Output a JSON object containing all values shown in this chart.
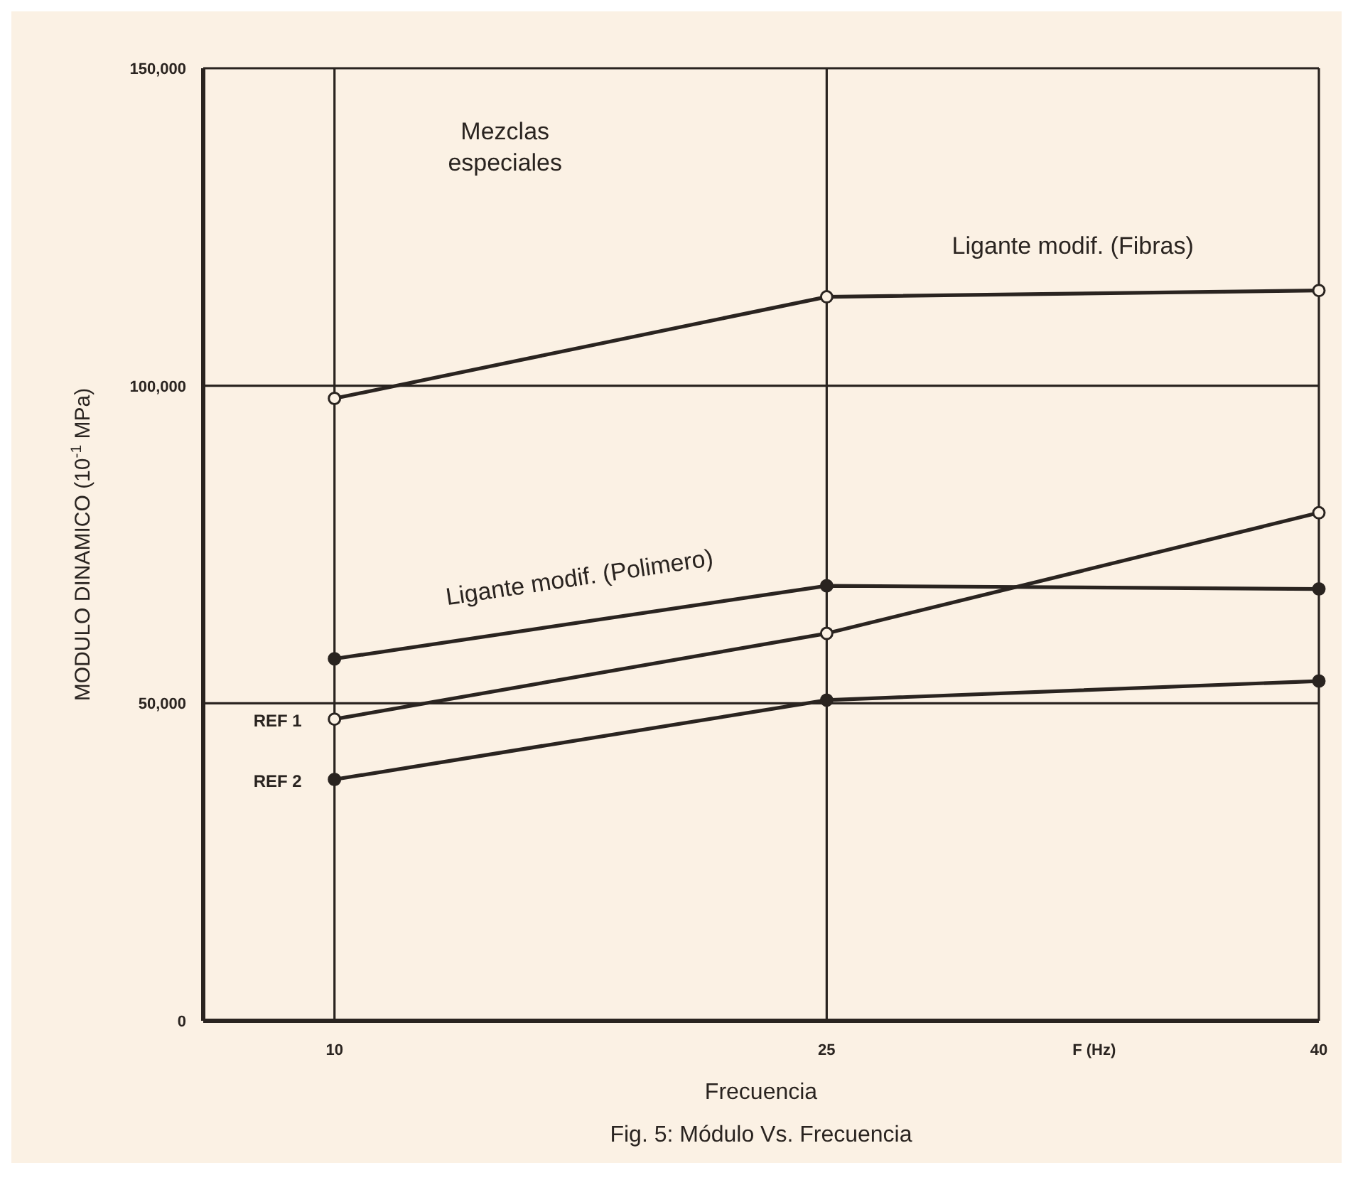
{
  "chart_data": {
    "type": "line",
    "title": "Fig. 5: Módulo Vs. Frecuencia",
    "xlabel": "Frecuencia",
    "ylabel": "MODULO DINAMICO (10$^{-1}$ MPa)",
    "x": [
      10,
      25,
      40
    ],
    "series": [
      {
        "name": "Ligante modif. (Fibras)",
        "color": "#2a2420",
        "values": [
          98000,
          114000,
          115000
        ]
      },
      {
        "name": "Ligante modif. (Polimero)",
        "color": "#2a2420",
        "values": [
          57000,
          68500,
          68000
        ]
      },
      {
        "name": "REF 1",
        "color": "#2a2420",
        "values": [
          47500,
          61000,
          80000
        ]
      },
      {
        "name": "REF 2",
        "color": "#2a2420",
        "values": [
          38000,
          50500,
          53500
        ]
      }
    ],
    "xlim": [
      6,
      40
    ],
    "xticks": [
      10,
      25,
      40
    ],
    "ylim": [
      0,
      150000
    ],
    "yticks": [
      {
        "value": 0,
        "label": "0"
      },
      {
        "value": 50000,
        "label": "50,000"
      },
      {
        "value": 100000,
        "label": "100,000"
      },
      {
        "value": 150000,
        "label": "150,000"
      }
    ],
    "grid": true,
    "marker": "circle",
    "line_style": "solid",
    "annotations": [
      "Mezclas especiales",
      "F (Hz)"
    ]
  }
}
